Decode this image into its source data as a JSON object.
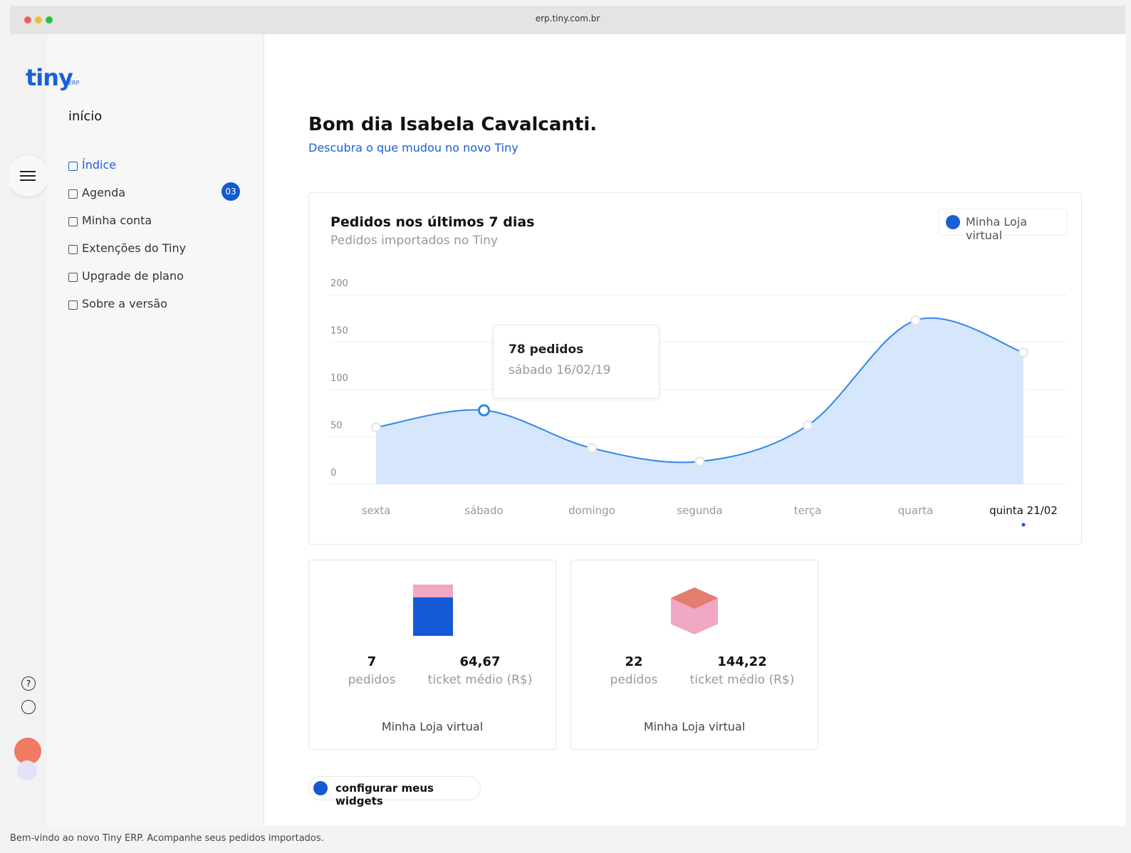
{
  "browser": {
    "url": "erp.tiny.com.br"
  },
  "sidebar": {
    "logo": "tiny",
    "logo_suffix": "ERP",
    "section": "início",
    "menu": [
      {
        "label": "Índice"
      },
      {
        "label": "Agenda",
        "badge": "03"
      },
      {
        "label": "Minha conta"
      },
      {
        "label": "Extenções do Tiny"
      },
      {
        "label": "Upgrade de plano"
      },
      {
        "label": "Sobre a versão"
      }
    ]
  },
  "header": {
    "greeting": "Bom dia Isabela Cavalcanti.",
    "link": "Descubra o que mudou no novo Tiny"
  },
  "chart_data": {
    "type": "area",
    "title": "Pedidos nos últimos 7 dias",
    "subtitle": "Pedidos importados no Tiny",
    "categories": [
      "sexta",
      "sábado",
      "domingo",
      "segunda",
      "terça",
      "quarta",
      "quinta 21/02"
    ],
    "series": [
      {
        "name": "Minha Loja virtual",
        "color": "#2f86eb",
        "values": [
          60,
          78,
          38,
          24,
          62,
          173,
          139
        ]
      }
    ],
    "ylim": [
      0,
      200
    ],
    "yticks": [
      0,
      50,
      100,
      150,
      200
    ],
    "grid": true,
    "tooltip": {
      "label": "78 pedidos",
      "date": "sábado 16/02/19"
    }
  },
  "widgets": [
    {
      "orders": "7",
      "orders_label": "pedidos",
      "ticket": "64,67",
      "ticket_label": "ticket médio (R$)",
      "store": "Minha Loja virtual"
    },
    {
      "orders": "22",
      "orders_label": "pedidos",
      "ticket": "144,22",
      "ticket_label": "ticket médio (R$)",
      "store": "Minha Loja virtual"
    }
  ],
  "button": "configurar meus widgets",
  "footer": "Bem-vindo ao novo Tiny ERP. Acompanhe seus pedidos importados."
}
